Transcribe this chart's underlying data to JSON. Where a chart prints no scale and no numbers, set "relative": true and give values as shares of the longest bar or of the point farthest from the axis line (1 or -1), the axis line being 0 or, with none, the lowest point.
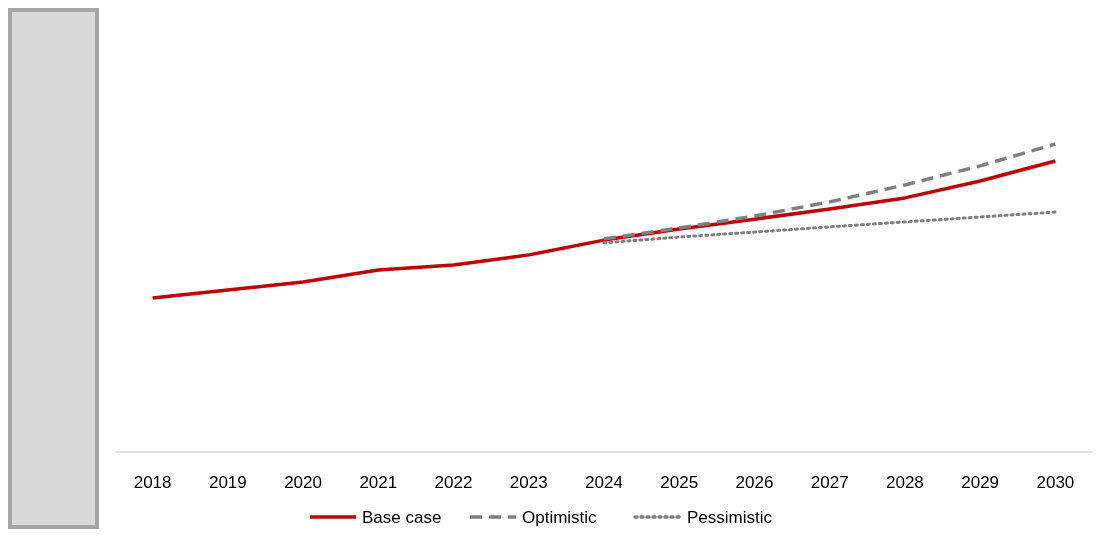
{
  "chart_data": {
    "type": "line",
    "relative": true,
    "categories": [
      "2018",
      "2019",
      "2020",
      "2021",
      "2022",
      "2023",
      "2024",
      "2025",
      "2026",
      "2027",
      "2028",
      "2029",
      "2030"
    ],
    "series": [
      {
        "name": "Base case",
        "color": "#c00000",
        "line_style": "solid",
        "values": [
          0.5,
          0.526,
          0.552,
          0.591,
          0.607,
          0.64,
          0.688,
          0.724,
          0.756,
          0.789,
          0.825,
          0.88,
          0.945
        ]
      },
      {
        "name": "Optimistic",
        "color": "#7f7f7f",
        "line_style": "dashed",
        "values": [
          null,
          null,
          null,
          null,
          null,
          null,
          0.692,
          0.727,
          0.766,
          0.812,
          0.867,
          0.929,
          1
        ]
      },
      {
        "name": "Pessimistic",
        "color": "#7f7f7f",
        "line_style": "dotted",
        "values": [
          null,
          null,
          null,
          null,
          null,
          null,
          0.679,
          0.698,
          0.714,
          0.731,
          0.747,
          0.763,
          0.779
        ]
      }
    ],
    "legend": "bottom",
    "grid": false,
    "marker": "none"
  }
}
